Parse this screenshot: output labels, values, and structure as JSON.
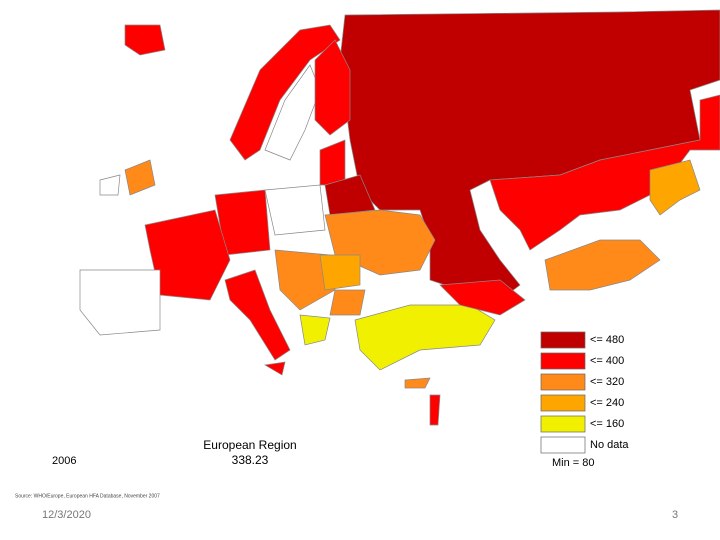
{
  "map": {
    "year": "2006",
    "region_title": "European Region",
    "region_value": "338.23",
    "legend": [
      {
        "label": "<= 480",
        "color": "#c00000"
      },
      {
        "label": "<= 400",
        "color": "#ff0000"
      },
      {
        "label": "<= 320",
        "color": "#ff8a1a"
      },
      {
        "label": "<= 240",
        "color": "#ffa500"
      },
      {
        "label": "<= 160",
        "color": "#f0f000"
      },
      {
        "label": "No data",
        "color": "#ffffff"
      }
    ],
    "min_label": "Min = 80",
    "source": "Source: WHO/Europe, European HFA Database, November 2007"
  },
  "footer": {
    "date": "12/3/2020",
    "page": "3"
  }
}
